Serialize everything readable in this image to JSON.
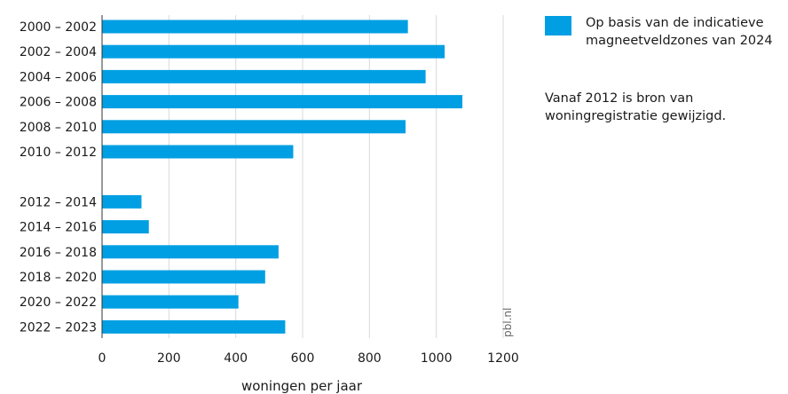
{
  "chart_data": {
    "type": "bar",
    "orientation": "horizontal",
    "categories": [
      "2000 – 2002",
      "2002 – 2004",
      "2004 – 2006",
      "2006 – 2008",
      "2008 – 2010",
      "2010 – 2012",
      "2012 – 2014",
      "2014 – 2016",
      "2016 – 2018",
      "2018 – 2020",
      "2020 – 2022",
      "2022 – 2023"
    ],
    "series": [
      {
        "name": "Op basis van de indicatieve magneetveldzones van 2024",
        "color": "#009fe3",
        "values": [
          915,
          1025,
          968,
          1078,
          908,
          572,
          118,
          140,
          528,
          488,
          408,
          548
        ]
      }
    ],
    "group_break_after": "2010 – 2012",
    "xlabel": "woningen per jaar",
    "xlim": [
      0,
      1200
    ],
    "xticks": [
      0,
      200,
      400,
      600,
      800,
      1000,
      1200
    ],
    "xtick_labels": [
      "0",
      "200",
      "400",
      "600",
      "800",
      "1000",
      "1200"
    ],
    "grid": "vertical",
    "legend_position": "top-right",
    "note": "Vanaf 2012 is bron van woningregistratie gewijzigd.",
    "source": "pbl.nl"
  }
}
